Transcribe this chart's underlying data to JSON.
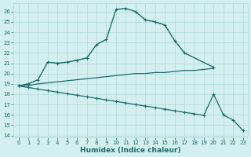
{
  "xlabel": "Humidex (Indice chaleur)",
  "background_color": "#d4efef",
  "grid_color": "#b0d8d8",
  "line_color": "#1a6b6b",
  "xlim": [
    -0.5,
    23.5
  ],
  "ylim": [
    13.8,
    26.8
  ],
  "yticks": [
    14,
    15,
    16,
    17,
    18,
    19,
    20,
    21,
    22,
    23,
    24,
    25,
    26
  ],
  "xticks": [
    0,
    1,
    2,
    3,
    4,
    5,
    6,
    7,
    8,
    9,
    10,
    11,
    12,
    13,
    14,
    15,
    16,
    17,
    18,
    19,
    20,
    21,
    22,
    23
  ],
  "curve_dotted_x": [
    0,
    1,
    2,
    3,
    4,
    5,
    6,
    7,
    8,
    9,
    10,
    11,
    12,
    13,
    14,
    15,
    16,
    17,
    20
  ],
  "curve_dotted_y": [
    18.8,
    19.0,
    19.4,
    21.1,
    21.0,
    21.1,
    21.3,
    21.5,
    22.8,
    23.3,
    26.2,
    26.3,
    26.0,
    25.2,
    25.0,
    24.7,
    23.2,
    22.0,
    20.6
  ],
  "curve_smooth_x": [
    0,
    1,
    2,
    3,
    4,
    5,
    6,
    7,
    8,
    9,
    10,
    11,
    12,
    13,
    14,
    15,
    16,
    17,
    20
  ],
  "curve_smooth_y": [
    18.8,
    19.0,
    19.4,
    21.1,
    21.0,
    21.1,
    21.3,
    21.5,
    22.8,
    23.3,
    26.2,
    26.3,
    26.0,
    25.2,
    25.0,
    24.7,
    23.2,
    22.0,
    20.6
  ],
  "curve_flat_x": [
    0,
    1,
    2,
    3,
    4,
    5,
    6,
    7,
    8,
    9,
    10,
    11,
    12,
    13,
    14,
    15,
    16,
    17,
    18,
    19,
    20
  ],
  "curve_flat_y": [
    18.8,
    18.85,
    19.0,
    19.1,
    19.2,
    19.3,
    19.4,
    19.5,
    19.6,
    19.7,
    19.8,
    19.9,
    20.0,
    20.0,
    20.1,
    20.1,
    20.2,
    20.3,
    20.3,
    20.4,
    20.5
  ],
  "curve_desc_x": [
    0,
    1,
    2,
    3,
    4,
    5,
    6,
    7,
    8,
    9,
    10,
    11,
    12,
    13,
    14,
    15,
    16,
    17,
    18,
    19,
    20,
    21,
    22,
    23
  ],
  "curve_desc_y": [
    18.8,
    18.65,
    18.5,
    18.35,
    18.2,
    18.05,
    17.9,
    17.75,
    17.6,
    17.45,
    17.3,
    17.15,
    17.0,
    16.85,
    16.7,
    16.55,
    16.4,
    16.25,
    16.1,
    15.95,
    18.0,
    16.0,
    15.5,
    14.5
  ]
}
